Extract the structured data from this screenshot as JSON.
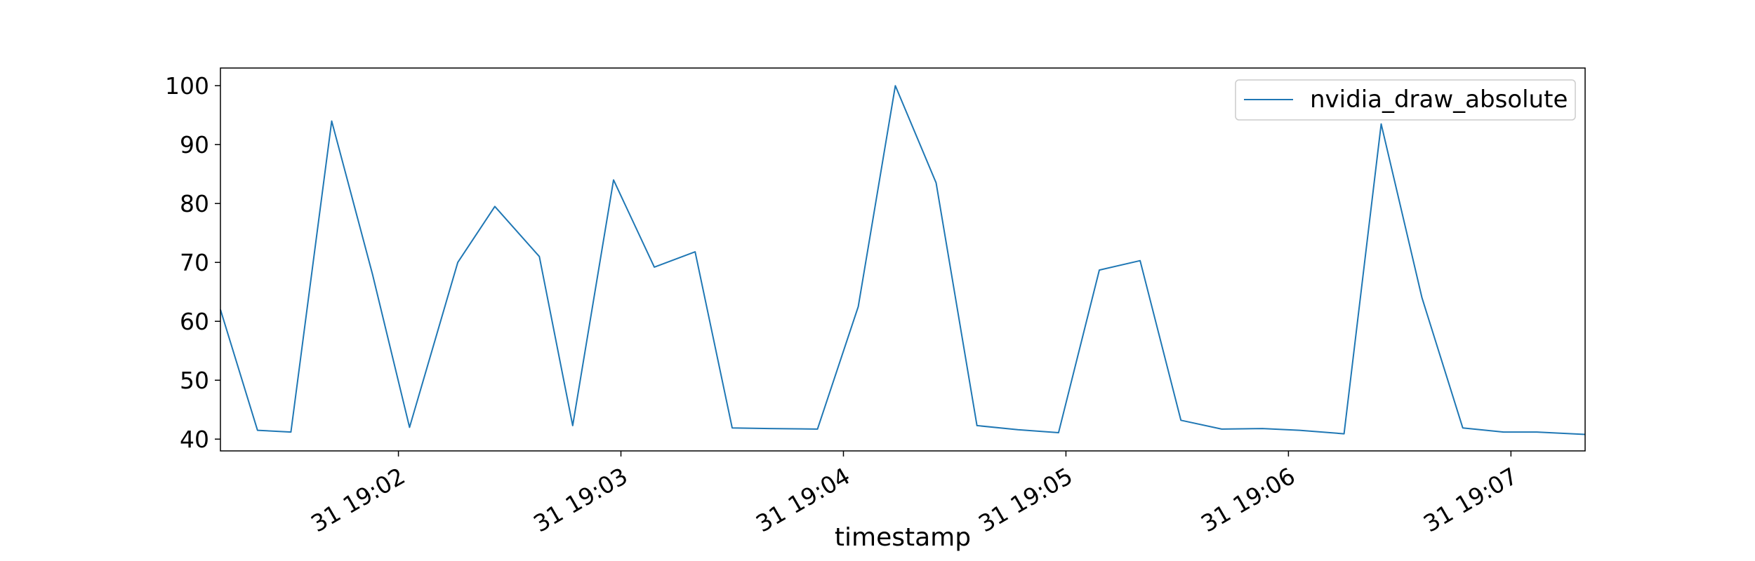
{
  "chart_data": {
    "type": "line",
    "title": "",
    "xlabel": "timestamp",
    "ylabel": "",
    "x_ticks": [
      "31 19:02",
      "31 19:03",
      "31 19:04",
      "31 19:05",
      "31 19:06",
      "31 19:07"
    ],
    "x_tick_times": [
      "19:02",
      "19:03",
      "19:04",
      "19:05",
      "19:06",
      "19:07"
    ],
    "y_ticks": [
      40,
      50,
      60,
      70,
      80,
      90,
      100
    ],
    "xlim": [
      "19:01:12",
      "19:07:20"
    ],
    "ylim": [
      38,
      103
    ],
    "grid": false,
    "legend": {
      "position": "top-right",
      "entries": [
        "nvidia_draw_absolute"
      ]
    },
    "series": [
      {
        "name": "nvidia_draw_absolute",
        "color": "#1f77b4",
        "x": [
          "19:01:12",
          "19:01:22",
          "19:01:31",
          "19:01:42",
          "19:01:53",
          "19:02:03",
          "19:02:16",
          "19:02:26",
          "19:02:38",
          "19:02:47",
          "19:02:58",
          "19:03:09",
          "19:03:20",
          "19:03:30",
          "19:03:40",
          "19:03:53",
          "19:04:04",
          "19:04:14",
          "19:04:25",
          "19:04:36",
          "19:04:47",
          "19:04:58",
          "19:05:09",
          "19:05:20",
          "19:05:31",
          "19:05:42",
          "19:05:53",
          "19:06:03",
          "19:06:15",
          "19:06:25",
          "19:06:36",
          "19:06:47",
          "19:06:58",
          "19:07:07",
          "19:07:20"
        ],
        "y": [
          62,
          41.5,
          41.2,
          94,
          68,
          42,
          70,
          79.5,
          71,
          42.3,
          84,
          69.2,
          71.8,
          41.9,
          41.8,
          41.7,
          62.5,
          100,
          83.5,
          42.3,
          41.6,
          41.1,
          68.7,
          70.3,
          43.2,
          41.7,
          41.8,
          41.5,
          40.9,
          93.5,
          64,
          41.9,
          41.2,
          41.2,
          40.8
        ]
      }
    ]
  }
}
